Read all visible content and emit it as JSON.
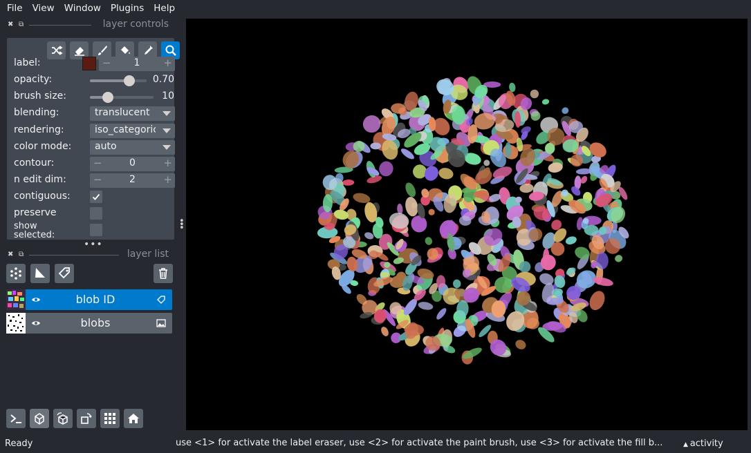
{
  "menu": {
    "items": [
      "File",
      "View",
      "Window",
      "Plugins",
      "Help"
    ]
  },
  "layer_controls": {
    "title": "layer controls",
    "label_label": "label:",
    "label_value": "1",
    "label_color": "#5a1c12",
    "opacity_label": "opacity:",
    "opacity_value": "0.70",
    "opacity_fraction": 0.7,
    "brush_label": "brush size:",
    "brush_value": "10",
    "brush_fraction": 0.28,
    "blending_label": "blending:",
    "blending_value": "translucent",
    "rendering_label": "rendering:",
    "rendering_value": "iso_categorical",
    "colormode_label": "color mode:",
    "colormode_value": "auto",
    "contour_label": "contour:",
    "contour_value": "0",
    "ndim_label": "n edit dim:",
    "ndim_value": "2",
    "contiguous_label": "contiguous:",
    "preserve_label": "preserve",
    "show_selected_label": "show selected:",
    "tools": [
      "shuffle-icon",
      "eraser-icon",
      "paint-brush-icon",
      "fill-bucket-icon",
      "color-picker-icon",
      "zoom-icon"
    ]
  },
  "layer_list": {
    "title": "layer list",
    "layers": [
      {
        "name": "blob ID",
        "type": "labels",
        "selected": true
      },
      {
        "name": "blobs",
        "type": "image",
        "selected": false
      }
    ]
  },
  "status": {
    "ready": "Ready",
    "message": "use <1> for activate the label eraser, use <2> for activate the paint brush, use <3> for activate the fill b...",
    "activity": "activity"
  },
  "colors": {
    "accent": "#007acc",
    "background": "#262930",
    "panel": "#414851",
    "button": "#5a626c"
  }
}
